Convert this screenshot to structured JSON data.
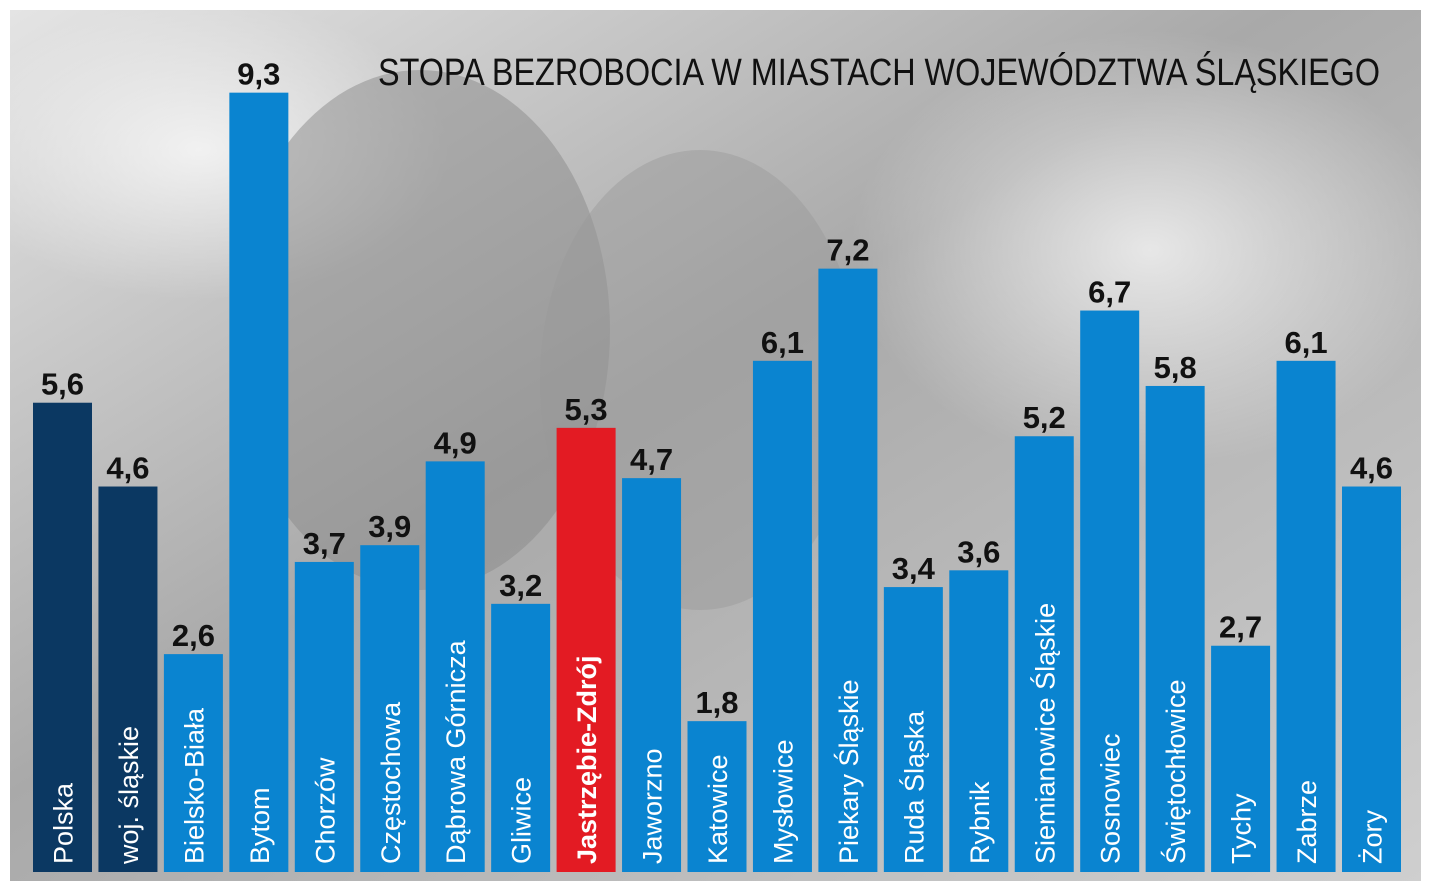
{
  "chart_data": {
    "type": "bar",
    "title": "STOPA BEZROBOCIA W MIASTACH WOJEWÓDZTWA ŚLĄSKIEGO",
    "categories": [
      "Polska",
      "woj. śląskie",
      "Bielsko-Biała",
      "Bytom",
      "Chorzów",
      "Częstochowa",
      "Dąbrowa Górnicza",
      "Gliwice",
      "Jastrzębie-Zdrój",
      "Jaworzno",
      "Katowice",
      "Mysłowice",
      "Piekary Śląskie",
      "Ruda Śląska",
      "Rybnik",
      "Siemianowice Śląskie",
      "Sosnowiec",
      "Świętochłowice",
      "Tychy",
      "Zabrze",
      "Żory"
    ],
    "values": [
      5.6,
      4.6,
      2.6,
      9.3,
      3.7,
      3.9,
      4.9,
      3.2,
      5.3,
      4.7,
      1.8,
      6.1,
      7.2,
      3.4,
      3.6,
      5.2,
      6.7,
      5.8,
      2.7,
      6.1,
      4.6
    ],
    "value_labels": [
      "5,6",
      "4,6",
      "2,6",
      "9,3",
      "3,7",
      "3,9",
      "4,9",
      "3,2",
      "5,3",
      "4,7",
      "1,8",
      "6,1",
      "7,2",
      "3,4",
      "3,6",
      "5,2",
      "6,7",
      "5,8",
      "2,7",
      "6,1",
      "4,6"
    ],
    "colors": [
      "#0b3862",
      "#0b3862",
      "#0a84d0",
      "#0a84d0",
      "#0a84d0",
      "#0a84d0",
      "#0a84d0",
      "#0a84d0",
      "#e31b23",
      "#0a84d0",
      "#0a84d0",
      "#0a84d0",
      "#0a84d0",
      "#0a84d0",
      "#0a84d0",
      "#0a84d0",
      "#0a84d0",
      "#0a84d0",
      "#0a84d0",
      "#0a84d0",
      "#0a84d0"
    ],
    "ylim": [
      0,
      10
    ]
  }
}
